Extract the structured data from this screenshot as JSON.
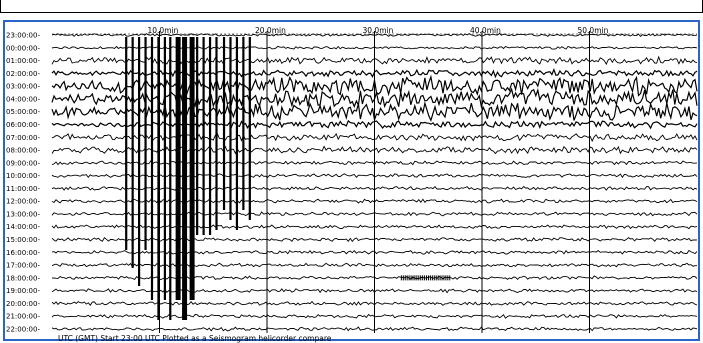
{
  "chart_data": {
    "type": "line",
    "title": "",
    "xlabel": "",
    "ylabel": "",
    "x_ticks": [
      "10.0min",
      "20.0min",
      "30.0min",
      "40.0min",
      "50.0min"
    ],
    "x_range_min": [
      0,
      60
    ],
    "row_labels": [
      "23:00:00-",
      "00:00:00-",
      "01:00:00-",
      "02:00:00-",
      "03:00:00-",
      "04:00:00-",
      "05:00:00-",
      "06:00:00-",
      "07:00:00-",
      "08:00:00-",
      "09:00:00-",
      "10:00:00-",
      "11:00:00-",
      "12:00:00-",
      "13:00:00-",
      "14:00:00-",
      "15:00:00-",
      "16:00:00-",
      "17:00:00-",
      "18:00:00-",
      "19:00:00-",
      "20:00:00-",
      "21:00:00-",
      "22:00:00-"
    ],
    "grid": true,
    "legend": "none",
    "trace_color": "#000000",
    "frame_color": "#2a64c6"
  },
  "footer_text": "UTC (GMT) Start 23:00 UTC  Plotted as a Seismogram  helicorder  compare"
}
